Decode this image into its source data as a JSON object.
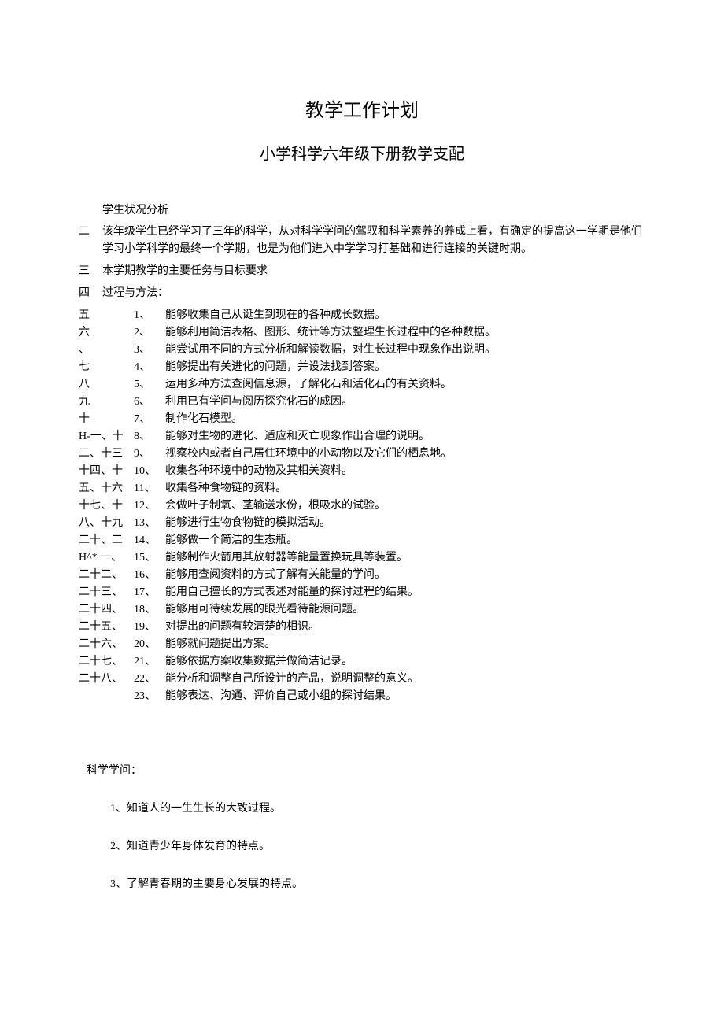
{
  "title": "教学工作计划",
  "subtitle": "小学科学六年级下册教学支配",
  "analysis_head": "学生状况分析",
  "intro_marker": "二",
  "intro_text": "该年级学生已经学习了三年的科学，从对科学学问的驾驭和科学素养的养成上看，有确定的提高这一学期是他们学习小学科学的最终一个学期，也是为他们进入中学学习打基础和进行连接的关键时期。",
  "row3_marker": "三",
  "row3_text": "本学期教学的主要任务与目标要求",
  "row4_marker": "四",
  "row4_text": "过程与方法：",
  "left_numbers": [
    "五",
    "六",
    "、",
    "七",
    "八",
    "九",
    "十",
    "H-一、十",
    "二、十三",
    "十四、十",
    "五、十六",
    "十七、十",
    "八、十九",
    "二十、二",
    "H^* 一、",
    "二十二、",
    "二十三、",
    "二十四、",
    "二十五、",
    "二十六、",
    "二十七、",
    "二十八、"
  ],
  "mid_numbers": [
    "1、",
    "2、",
    "3、",
    "4、",
    " 5、",
    " 6、",
    "7、",
    "8、",
    "9、",
    "10、",
    "11、",
    "12、",
    "13、",
    "14、",
    "15、",
    "16、",
    "17、",
    "18、",
    "19、",
    "20、",
    "21、",
    "22、",
    "23、",
    ""
  ],
  "items": [
    "能够收集自己从诞生到现在的各种成长数据。",
    "能够利用简洁表格、图形、统计等方法整理生长过程中的各种数据。",
    "能尝试用不同的方式分析和解读数据，对生长过程中现象作出说明。",
    "能够提出有关进化的问题，并设法找到答案。",
    "运用多种方法查阅信息源，了解化石和活化石的有关资料。",
    "利用已有学问与阅历探究化石的成因。",
    "制作化石模型。",
    "能够对生物的进化、适应和灭亡现象作出合理的说明。",
    "视察校内或者自己居住环境中的小动物以及它们的栖息地。",
    "收集各种环境中的动物及其相关资料。",
    "收集各种食物链的资料。",
    "会做叶子制氧、茎输送水份，根吸水的试验。",
    "能够进行生物食物链的模拟活动。",
    "能够做一个简洁的生态瓶。",
    "能够制作火箭用其放射器等能量置换玩具等装置。",
    "能够用查阅资料的方式了解有关能量的学问。",
    "能用自己擅长的方式表述对能量的探讨过程的结果。",
    "能够用可待续发展的眼光看待能源问题。",
    "对提出的问题有较清楚的相识。",
    "能够就问题提出方案。",
    "能够依据方案收集数据并做简洁记录。",
    "能分析和调整自己所设计的产品，说明调整的意义。",
    "能够表达、沟通、评价自己或小组的探讨结果。"
  ],
  "know_head": "科学学问：",
  "know_items": [
    "1、知道人的一生生长的大致过程。",
    "2、知道青少年身体发育的特点。",
    "3、了解青春期的主要身心发展的特点。"
  ]
}
